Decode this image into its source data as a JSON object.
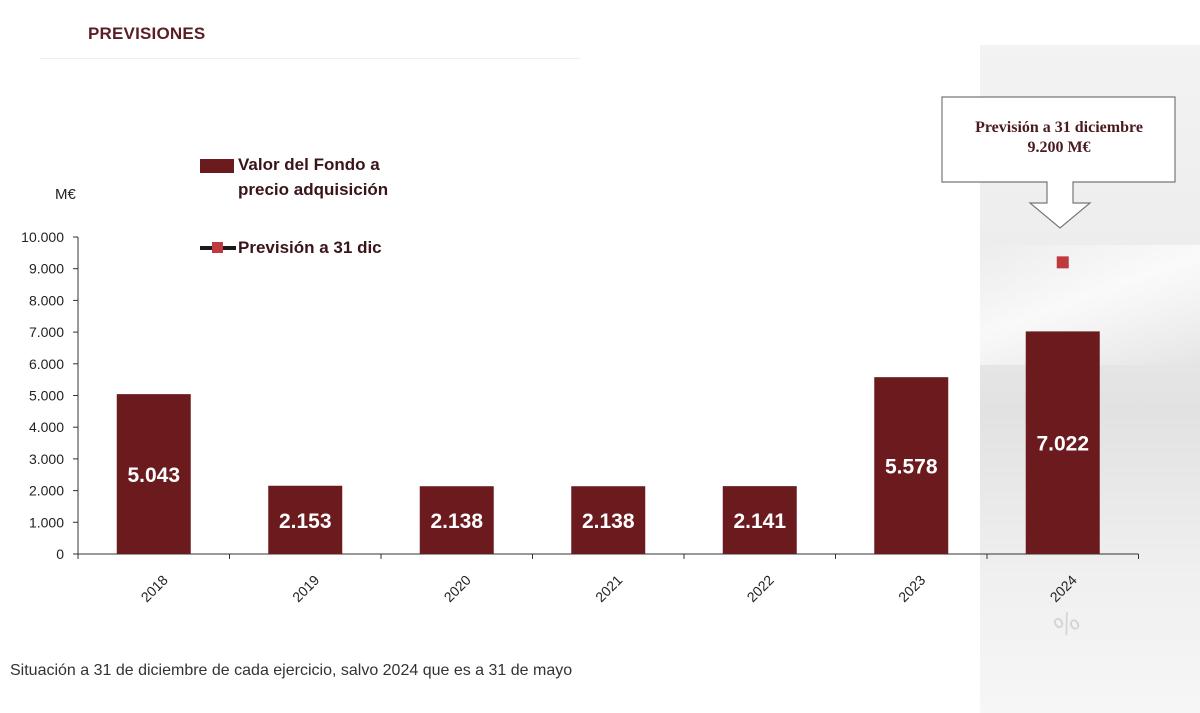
{
  "heading": "PREVISIONES",
  "unit_label": "M€",
  "legend": {
    "bar_series": "Valor del Fondo a precio adquisición",
    "bar_series_line1": "Valor del Fondo a",
    "bar_series_line2": "precio adquisición",
    "point_series": "Previsión a 31 dic"
  },
  "callout": {
    "line1": "Previsión a 31 diciembre",
    "line2": "9.200 M€"
  },
  "footnote": "Situación a 31 de diciembre de cada ejercicio, salvo 2024 que es a 31 de mayo",
  "colors": {
    "bar": "#6b1a1e",
    "point": "#c0393f",
    "heading": "#5a1f24"
  },
  "chart_data": {
    "type": "bar",
    "title": "",
    "xlabel": "",
    "ylabel": "M€",
    "ylim": [
      0,
      10000
    ],
    "yticks": [
      0,
      1000,
      2000,
      3000,
      4000,
      5000,
      6000,
      7000,
      8000,
      9000,
      10000
    ],
    "ytick_labels": [
      "0",
      "1.000",
      "2.000",
      "3.000",
      "4.000",
      "5.000",
      "6.000",
      "7.000",
      "8.000",
      "9.000",
      "10.000"
    ],
    "categories": [
      "2018",
      "2019",
      "2020",
      "2021",
      "2022",
      "2023",
      "2024"
    ],
    "series": [
      {
        "name": "Valor del Fondo a precio adquisición",
        "type": "bar",
        "values": [
          5043,
          2153,
          2138,
          2138,
          2141,
          5578,
          7022
        ],
        "value_labels": [
          "5.043",
          "2.153",
          "2.138",
          "2.138",
          "2.141",
          "5.578",
          "7.022"
        ]
      },
      {
        "name": "Previsión a 31 dic",
        "type": "point",
        "values": [
          null,
          null,
          null,
          null,
          null,
          null,
          9200
        ]
      }
    ],
    "grid": false,
    "legend_position": "top-left"
  }
}
